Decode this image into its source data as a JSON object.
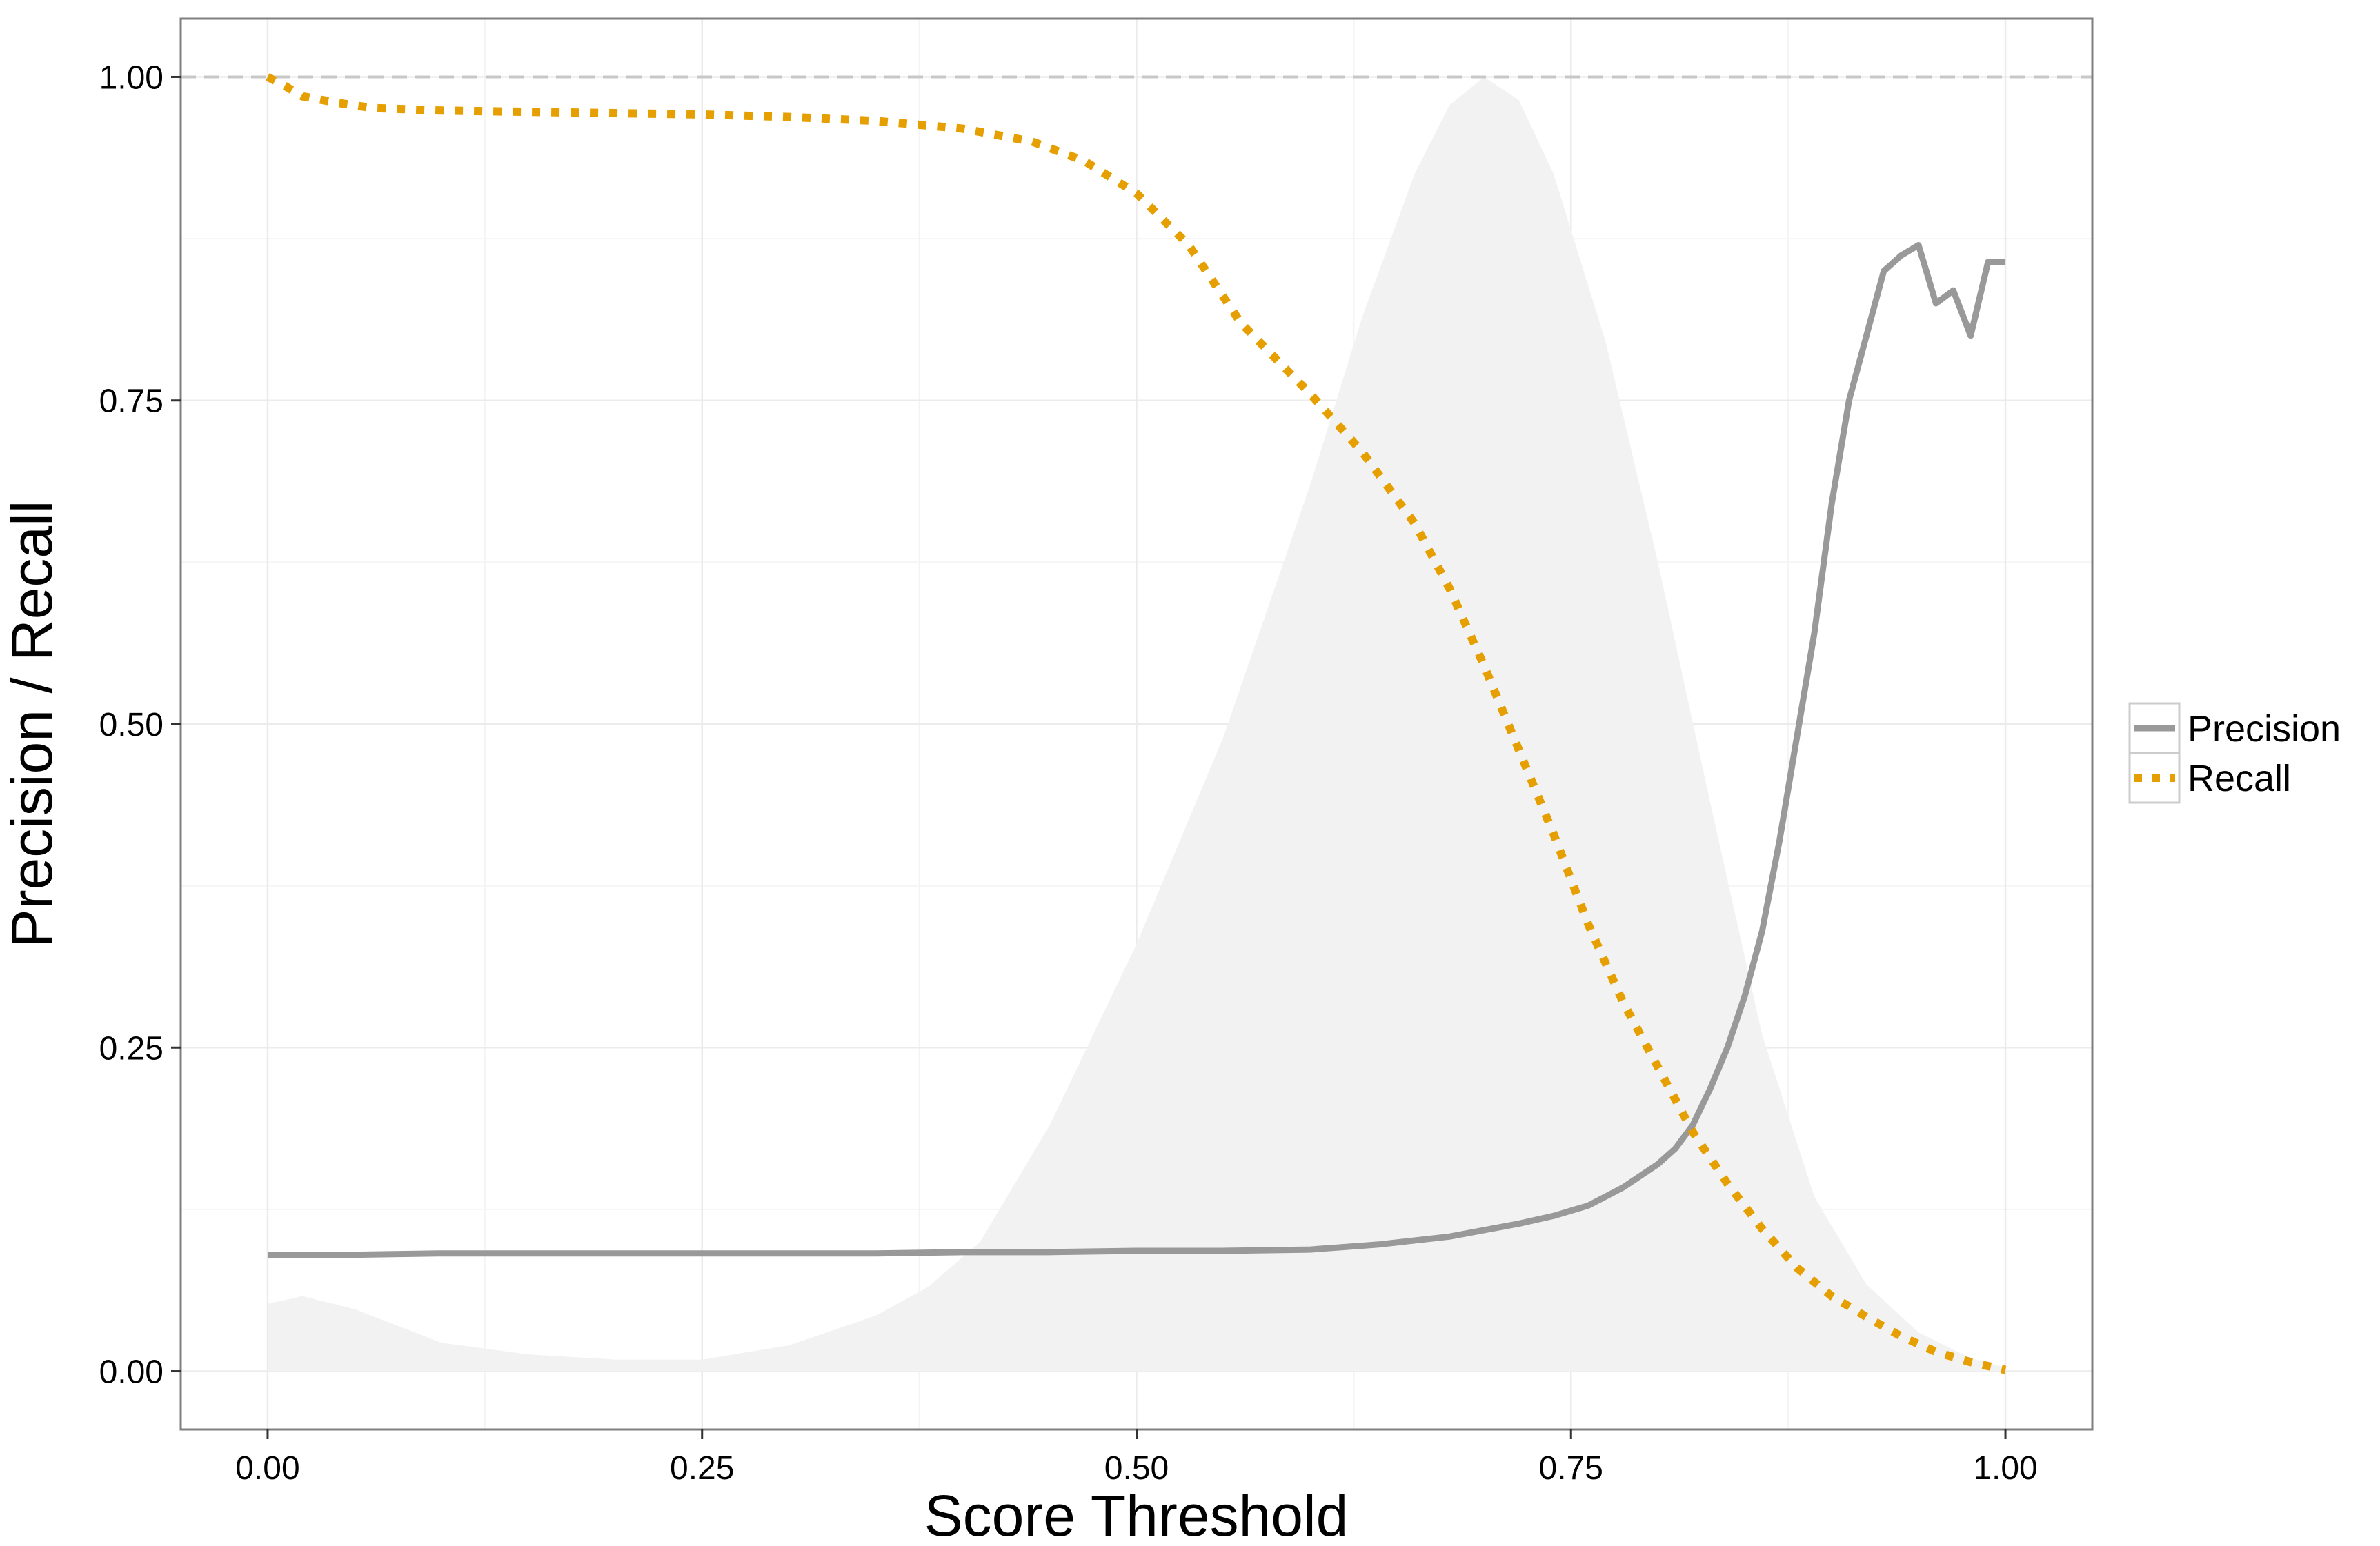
{
  "chart_data": {
    "type": "line",
    "xlabel": "Score Threshold",
    "ylabel": "Precision / Recall",
    "xlim": [
      -0.05,
      1.05
    ],
    "ylim": [
      -0.045,
      1.045
    ],
    "xticks": [
      0.0,
      0.25,
      0.5,
      0.75,
      1.0
    ],
    "xtick_labels": [
      "0.00",
      "0.25",
      "0.50",
      "0.75",
      "1.00"
    ],
    "yticks": [
      0.0,
      0.25,
      0.5,
      0.75,
      1.0
    ],
    "ytick_labels": [
      "0.00",
      "0.25",
      "0.50",
      "0.75",
      "1.00"
    ],
    "grid": true,
    "reference_line": {
      "y": 1.0,
      "style": "dashed",
      "color": "#c8c8c8"
    },
    "legend": {
      "position": "right",
      "entries": [
        {
          "label": "Precision",
          "color": "#999999",
          "style": "solid"
        },
        {
          "label": "Recall",
          "color": "#E69F00",
          "style": "dotted"
        }
      ]
    },
    "series": [
      {
        "name": "Precision",
        "color": "#999999",
        "style": "solid",
        "x": [
          0.0,
          0.05,
          0.1,
          0.15,
          0.2,
          0.25,
          0.3,
          0.35,
          0.4,
          0.45,
          0.5,
          0.55,
          0.6,
          0.62,
          0.64,
          0.66,
          0.68,
          0.7,
          0.72,
          0.74,
          0.76,
          0.78,
          0.8,
          0.81,
          0.82,
          0.83,
          0.84,
          0.85,
          0.86,
          0.87,
          0.88,
          0.89,
          0.9,
          0.91,
          0.92,
          0.93,
          0.94,
          0.95,
          0.96,
          0.97,
          0.98,
          0.99,
          1.0
        ],
        "y": [
          0.09,
          0.09,
          0.091,
          0.091,
          0.091,
          0.091,
          0.091,
          0.091,
          0.092,
          0.092,
          0.093,
          0.093,
          0.094,
          0.096,
          0.098,
          0.101,
          0.104,
          0.109,
          0.114,
          0.12,
          0.128,
          0.142,
          0.16,
          0.172,
          0.19,
          0.218,
          0.25,
          0.29,
          0.34,
          0.41,
          0.49,
          0.57,
          0.67,
          0.75,
          0.8,
          0.85,
          0.862,
          0.87,
          0.825,
          0.835,
          0.8,
          0.857,
          0.857
        ]
      },
      {
        "name": "Recall",
        "color": "#E69F00",
        "style": "dotted",
        "x": [
          0.0,
          0.01,
          0.02,
          0.04,
          0.06,
          0.1,
          0.15,
          0.2,
          0.25,
          0.3,
          0.35,
          0.4,
          0.44,
          0.47,
          0.5,
          0.53,
          0.56,
          0.6,
          0.63,
          0.66,
          0.68,
          0.7,
          0.72,
          0.74,
          0.76,
          0.78,
          0.8,
          0.82,
          0.84,
          0.86,
          0.88,
          0.9,
          0.92,
          0.94,
          0.96,
          0.98,
          1.0
        ],
        "y": [
          1.0,
          0.993,
          0.985,
          0.98,
          0.976,
          0.974,
          0.973,
          0.972,
          0.971,
          0.969,
          0.966,
          0.96,
          0.95,
          0.935,
          0.91,
          0.87,
          0.81,
          0.755,
          0.71,
          0.655,
          0.605,
          0.545,
          0.48,
          0.415,
          0.345,
          0.285,
          0.235,
          0.185,
          0.145,
          0.11,
          0.08,
          0.058,
          0.042,
          0.027,
          0.015,
          0.007,
          0.001
        ]
      },
      {
        "name": "",
        "color": "#f2f2f2",
        "style": "area",
        "x": [
          0.0,
          0.02,
          0.05,
          0.1,
          0.15,
          0.2,
          0.25,
          0.3,
          0.35,
          0.38,
          0.41,
          0.45,
          0.5,
          0.55,
          0.6,
          0.63,
          0.66,
          0.68,
          0.7,
          0.72,
          0.74,
          0.77,
          0.8,
          0.83,
          0.86,
          0.89,
          0.92,
          0.95,
          0.98,
          1.0
        ],
        "y": [
          0.052,
          0.058,
          0.048,
          0.022,
          0.013,
          0.009,
          0.009,
          0.02,
          0.043,
          0.065,
          0.1,
          0.19,
          0.33,
          0.49,
          0.685,
          0.815,
          0.925,
          0.978,
          1.0,
          0.982,
          0.925,
          0.795,
          0.625,
          0.44,
          0.26,
          0.135,
          0.067,
          0.03,
          0.01,
          0.003
        ]
      }
    ]
  }
}
